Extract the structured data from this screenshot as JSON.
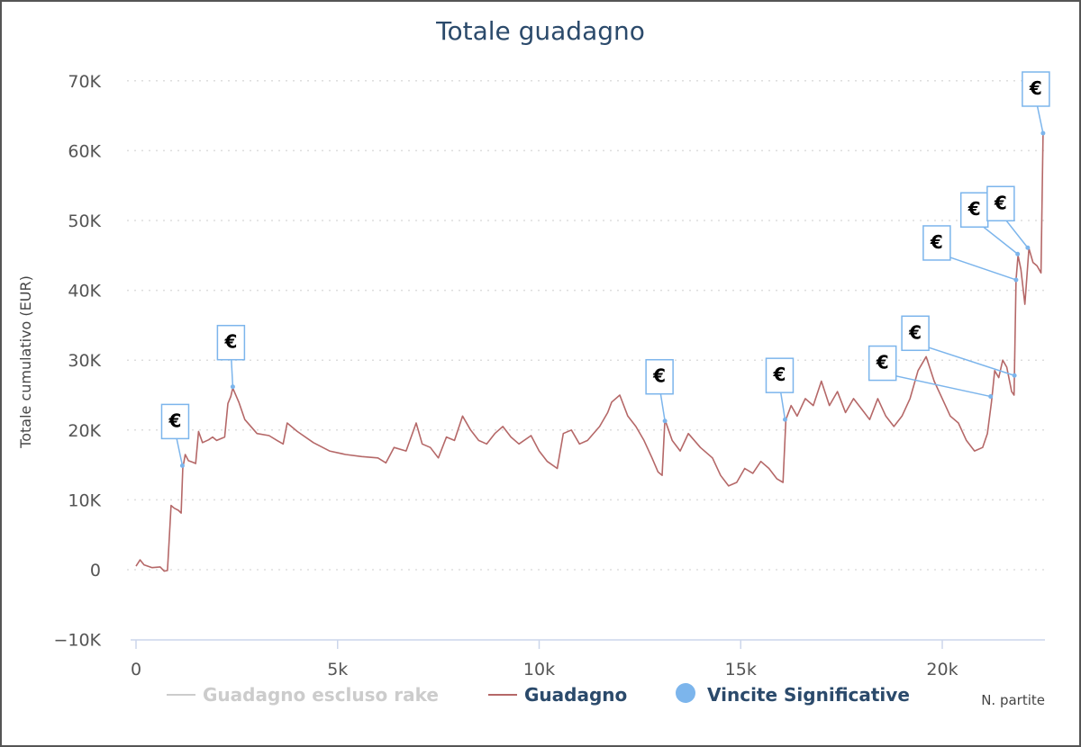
{
  "chart_data": {
    "type": "line",
    "title": "Totale guadagno",
    "xlabel": "N. partite",
    "ylabel": "Totale cumulativo (EUR)",
    "xlim": [
      0,
      22600
    ],
    "ylim": [
      -10000,
      70000
    ],
    "x_ticks": [
      0,
      5000,
      10000,
      15000,
      20000
    ],
    "x_tick_labels": [
      "0",
      "5k",
      "10k",
      "15k",
      "20k"
    ],
    "y_ticks": [
      -10000,
      0,
      10000,
      20000,
      30000,
      40000,
      50000,
      60000,
      70000
    ],
    "y_tick_labels": [
      "−10K",
      "0",
      "10K",
      "20K",
      "30K",
      "40K",
      "50K",
      "60K",
      "70K"
    ],
    "grid": true,
    "legend_position": "bottom",
    "legend": [
      {
        "name": "Guadagno escluso rake",
        "color": "#cccccc",
        "symbol": "line",
        "hidden": true
      },
      {
        "name": "Guadagno",
        "color": "#b56868",
        "symbol": "line",
        "hidden": false
      },
      {
        "name": "Vincite Significative",
        "color": "#7cb5ec",
        "symbol": "circle",
        "hidden": false
      }
    ],
    "series": [
      {
        "name": "Guadagno",
        "color": "#b56868",
        "points": [
          [
            0,
            500
          ],
          [
            100,
            1400
          ],
          [
            200,
            700
          ],
          [
            400,
            300
          ],
          [
            600,
            400
          ],
          [
            700,
            -200
          ],
          [
            780,
            -100
          ],
          [
            820,
            4000
          ],
          [
            870,
            9200
          ],
          [
            950,
            8800
          ],
          [
            1050,
            8500
          ],
          [
            1120,
            8100
          ],
          [
            1160,
            14500
          ],
          [
            1220,
            16500
          ],
          [
            1300,
            15600
          ],
          [
            1400,
            15400
          ],
          [
            1480,
            15200
          ],
          [
            1550,
            19800
          ],
          [
            1650,
            18200
          ],
          [
            1800,
            18600
          ],
          [
            1900,
            19000
          ],
          [
            2000,
            18500
          ],
          [
            2200,
            19000
          ],
          [
            2280,
            23800
          ],
          [
            2350,
            24800
          ],
          [
            2400,
            26000
          ],
          [
            2550,
            24000
          ],
          [
            2700,
            21500
          ],
          [
            3000,
            19500
          ],
          [
            3300,
            19200
          ],
          [
            3500,
            18500
          ],
          [
            3650,
            18000
          ],
          [
            3750,
            21000
          ],
          [
            4000,
            19800
          ],
          [
            4400,
            18200
          ],
          [
            4800,
            17000
          ],
          [
            5200,
            16500
          ],
          [
            5600,
            16200
          ],
          [
            6000,
            16000
          ],
          [
            6200,
            15300
          ],
          [
            6400,
            17500
          ],
          [
            6700,
            17000
          ],
          [
            6950,
            21000
          ],
          [
            7100,
            18000
          ],
          [
            7300,
            17500
          ],
          [
            7500,
            16000
          ],
          [
            7700,
            19000
          ],
          [
            7900,
            18500
          ],
          [
            8100,
            22000
          ],
          [
            8300,
            20000
          ],
          [
            8500,
            18500
          ],
          [
            8700,
            18000
          ],
          [
            8900,
            19500
          ],
          [
            9100,
            20500
          ],
          [
            9300,
            19000
          ],
          [
            9500,
            18000
          ],
          [
            9800,
            19200
          ],
          [
            10000,
            17000
          ],
          [
            10200,
            15500
          ],
          [
            10450,
            14500
          ],
          [
            10600,
            19500
          ],
          [
            10800,
            20000
          ],
          [
            11000,
            18000
          ],
          [
            11200,
            18500
          ],
          [
            11500,
            20500
          ],
          [
            11700,
            22500
          ],
          [
            11800,
            24000
          ],
          [
            12000,
            25000
          ],
          [
            12200,
            22000
          ],
          [
            12400,
            20500
          ],
          [
            12600,
            18500
          ],
          [
            12800,
            16000
          ],
          [
            12950,
            14000
          ],
          [
            13050,
            13500
          ],
          [
            13120,
            21500
          ],
          [
            13300,
            18500
          ],
          [
            13500,
            17000
          ],
          [
            13700,
            19500
          ],
          [
            14000,
            17500
          ],
          [
            14300,
            16000
          ],
          [
            14500,
            13500
          ],
          [
            14700,
            12000
          ],
          [
            14900,
            12500
          ],
          [
            15100,
            14500
          ],
          [
            15300,
            13800
          ],
          [
            15500,
            15500
          ],
          [
            15700,
            14500
          ],
          [
            15900,
            13000
          ],
          [
            16050,
            12500
          ],
          [
            16120,
            21500
          ],
          [
            16250,
            23500
          ],
          [
            16400,
            22000
          ],
          [
            16600,
            24500
          ],
          [
            16800,
            23500
          ],
          [
            17000,
            27000
          ],
          [
            17200,
            23500
          ],
          [
            17400,
            25500
          ],
          [
            17600,
            22500
          ],
          [
            17800,
            24500
          ],
          [
            18000,
            23000
          ],
          [
            18200,
            21500
          ],
          [
            18400,
            24500
          ],
          [
            18600,
            22000
          ],
          [
            18800,
            20500
          ],
          [
            19000,
            22000
          ],
          [
            19200,
            24500
          ],
          [
            19400,
            28500
          ],
          [
            19600,
            30500
          ],
          [
            19800,
            27000
          ],
          [
            20000,
            24500
          ],
          [
            20200,
            22000
          ],
          [
            20400,
            21000
          ],
          [
            20600,
            18500
          ],
          [
            20800,
            17000
          ],
          [
            21000,
            17500
          ],
          [
            21120,
            19500
          ],
          [
            21220,
            24000
          ],
          [
            21300,
            28500
          ],
          [
            21400,
            27500
          ],
          [
            21500,
            30000
          ],
          [
            21600,
            29000
          ],
          [
            21720,
            25500
          ],
          [
            21780,
            25000
          ],
          [
            21830,
            41500
          ],
          [
            21880,
            45000
          ],
          [
            21950,
            43000
          ],
          [
            22050,
            38000
          ],
          [
            22150,
            46000
          ],
          [
            22250,
            44000
          ],
          [
            22350,
            43500
          ],
          [
            22450,
            42500
          ],
          [
            22500,
            62500
          ]
        ]
      }
    ],
    "significant_wins": {
      "name": "Vincite Significative",
      "symbol": "€",
      "points": [
        [
          1150,
          14900
        ],
        [
          2400,
          26200
        ],
        [
          13120,
          21300
        ],
        [
          16100,
          21500
        ],
        [
          21200,
          24800
        ],
        [
          21790,
          27800
        ],
        [
          21830,
          41500
        ],
        [
          21870,
          45200
        ],
        [
          22120,
          46100
        ],
        [
          22500,
          62500
        ]
      ]
    }
  }
}
